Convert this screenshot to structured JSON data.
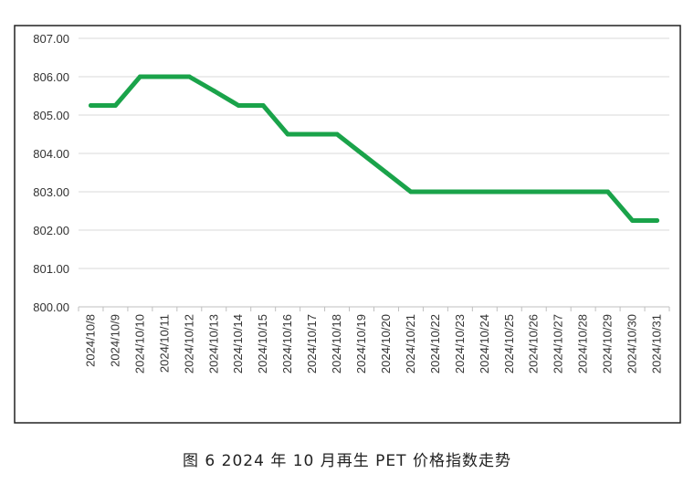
{
  "caption": "图 6  2024 年 10 月再生 PET 价格指数走势",
  "chart_data": {
    "type": "line",
    "title": "",
    "xlabel": "",
    "ylabel": "",
    "ylim": [
      800,
      807
    ],
    "yticks": [
      "800.00",
      "801.00",
      "802.00",
      "803.00",
      "804.00",
      "805.00",
      "806.00",
      "807.00"
    ],
    "grid": true,
    "legend": "none",
    "series_color": "#1aa34a",
    "categories": [
      "2024/10/8",
      "2024/10/9",
      "2024/10/10",
      "2024/10/11",
      "2024/10/12",
      "2024/10/13",
      "2024/10/14",
      "2024/10/15",
      "2024/10/16",
      "2024/10/17",
      "2024/10/18",
      "2024/10/19",
      "2024/10/20",
      "2024/10/21",
      "2024/10/22",
      "2024/10/23",
      "2024/10/24",
      "2024/10/25",
      "2024/10/26",
      "2024/10/27",
      "2024/10/28",
      "2024/10/29",
      "2024/10/30",
      "2024/10/31"
    ],
    "series": [
      {
        "values": [
          805.25,
          805.25,
          806.0,
          806.0,
          806.0,
          805.63,
          805.25,
          805.25,
          804.5,
          804.5,
          804.5,
          804.0,
          803.5,
          803.0,
          803.0,
          803.0,
          803.0,
          803.0,
          803.0,
          803.0,
          803.0,
          803.0,
          802.25,
          802.25
        ]
      }
    ]
  }
}
